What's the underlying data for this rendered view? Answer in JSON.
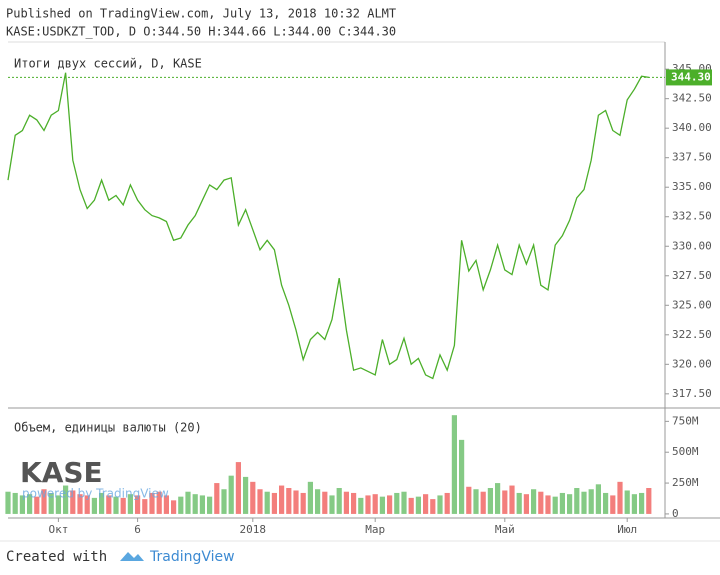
{
  "header": {
    "published": "Published on TradingView.com, July 13, 2018 10:32 ALMT",
    "symbol_line": "KASE:USDKZT_TOD, D O:344.50 H:344.66 L:344.00 C:344.30"
  },
  "watermark": {
    "logo": "KASE",
    "powered": "powered by TradingView"
  },
  "footer": {
    "created": "Created with",
    "brand": "TradingView"
  },
  "chart_data": [
    {
      "type": "line",
      "title": "Итоги двух сессий, D, KASE",
      "color": "#4caf2a",
      "categories": [
        null,
        null,
        null,
        null,
        null,
        null,
        null,
        "Окт",
        null,
        null,
        null,
        null,
        null,
        null,
        null,
        null,
        null,
        null,
        "6",
        null,
        null,
        null,
        null,
        null,
        null,
        null,
        null,
        null,
        null,
        null,
        null,
        null,
        null,
        null,
        "2018",
        null,
        null,
        null,
        null,
        null,
        null,
        null,
        null,
        null,
        null,
        null,
        null,
        null,
        null,
        null,
        null,
        "Мар",
        null,
        null,
        null,
        null,
        null,
        null,
        null,
        null,
        null,
        null,
        null,
        null,
        null,
        null,
        null,
        null,
        null,
        "Май",
        null,
        null,
        null,
        null,
        null,
        null,
        null,
        null,
        null,
        null,
        null,
        null,
        null,
        null,
        null,
        null,
        "Июл",
        null,
        null,
        null
      ],
      "series": [
        {
          "values": [
            335.6,
            339.4,
            339.8,
            341.1,
            340.7,
            339.8,
            341.1,
            341.5,
            344.7,
            337.3,
            334.8,
            333.2,
            333.9,
            335.6,
            333.9,
            334.3,
            333.5,
            335.2,
            333.9,
            333.1,
            332.6,
            332.4,
            332.1,
            330.5,
            330.7,
            331.8,
            332.6,
            333.9,
            335.2,
            334.8,
            335.6,
            335.8,
            331.8,
            333.1,
            331.4,
            329.7,
            330.5,
            329.7,
            326.7,
            325.0,
            322.9,
            320.4,
            322.1,
            322.7,
            322.1,
            323.8,
            327.3,
            322.9,
            319.5,
            319.7,
            319.4,
            319.1,
            322.1,
            320.0,
            320.4,
            322.2,
            320.0,
            320.5,
            319.1,
            318.8,
            320.8,
            319.5,
            321.6,
            330.5,
            327.9,
            328.8,
            326.3,
            328.0,
            330.1,
            328.0,
            327.6,
            330.1,
            328.5,
            330.1,
            326.7,
            326.3,
            330.1,
            330.9,
            332.2,
            334.1,
            334.8,
            337.3,
            341.1,
            341.5,
            339.8,
            339.4,
            342.4,
            343.3,
            344.4,
            344.3
          ]
        }
      ],
      "ylim": [
        316.3,
        347.3
      ],
      "yticks": [
        {
          "value": 317.5,
          "label": "317.50"
        },
        {
          "value": 320,
          "label": "320.00"
        },
        {
          "value": 322.5,
          "label": "322.50"
        },
        {
          "value": 325,
          "label": "325.00"
        },
        {
          "value": 327.5,
          "label": "327.50"
        },
        {
          "value": 330,
          "label": "330.00"
        },
        {
          "value": 332.5,
          "label": "332.50"
        },
        {
          "value": 335,
          "label": "335.00"
        },
        {
          "value": 337.5,
          "label": "337.50"
        },
        {
          "value": 340,
          "label": "340.00"
        },
        {
          "value": 342.5,
          "label": "342.50"
        },
        {
          "value": 345,
          "label": "345.00"
        }
      ],
      "last_price": {
        "value": 344.3,
        "label": "344.30"
      }
    },
    {
      "type": "bar",
      "title": "Объем, единицы валюты (20)",
      "up_color": "#5cb85c",
      "down_color": "#ef5350",
      "values": [
        180,
        170,
        150,
        160,
        140,
        200,
        170,
        150,
        230,
        190,
        160,
        150,
        130,
        170,
        150,
        140,
        130,
        160,
        150,
        120,
        170,
        180,
        150,
        110,
        140,
        180,
        160,
        150,
        140,
        250,
        200,
        310,
        420,
        300,
        260,
        200,
        180,
        170,
        230,
        210,
        190,
        170,
        260,
        200,
        180,
        150,
        210,
        180,
        170,
        130,
        150,
        160,
        140,
        150,
        170,
        180,
        130,
        140,
        160,
        120,
        150,
        170,
        800,
        600,
        220,
        200,
        180,
        210,
        250,
        190,
        230,
        170,
        160,
        200,
        180,
        150,
        140,
        170,
        160,
        210,
        180,
        200,
        240,
        170,
        150,
        260,
        190,
        160,
        170,
        210
      ],
      "ylim": [
        -33,
        842
      ],
      "yticks": [
        0,
        {
          "value": 250,
          "label": "250M"
        },
        {
          "value": 500,
          "label": "500M"
        },
        {
          "value": 750,
          "label": "750M"
        }
      ]
    }
  ]
}
